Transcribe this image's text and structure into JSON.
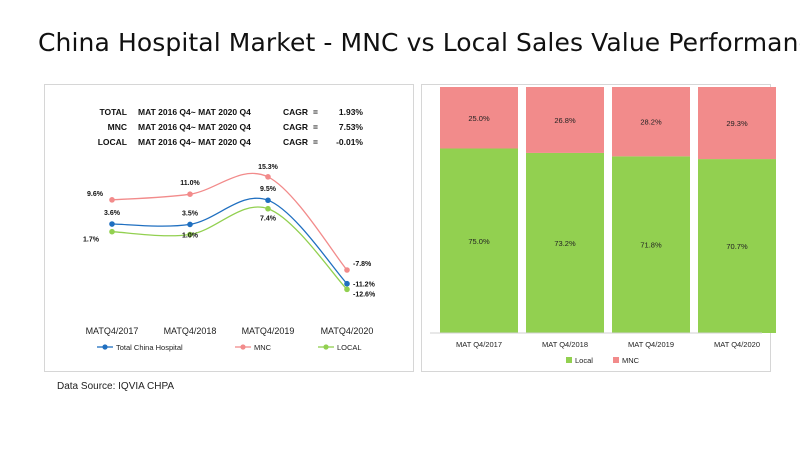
{
  "title": "China Hospital Market - MNC vs Local Sales Value Performance",
  "source": "Data Source: IQVIA CHPA",
  "cagr_table": [
    {
      "segment": "TOTAL",
      "period": "MAT 2016 Q4~ MAT 2020 Q4",
      "label": "CAGR",
      "eq": "=",
      "value": "1.93%"
    },
    {
      "segment": "MNC",
      "period": "MAT 2016 Q4~ MAT 2020 Q4",
      "label": "CAGR",
      "eq": "=",
      "value": "7.53%"
    },
    {
      "segment": "LOCAL",
      "period": "MAT 2016 Q4~ MAT 2020 Q4",
      "label": "CAGR",
      "eq": "=",
      "value": "-0.01%"
    }
  ],
  "colors": {
    "total": "#1f6fc0",
    "mnc": "#f28b8b",
    "local": "#92d050"
  },
  "chart_data": [
    {
      "type": "line",
      "categories": [
        "MATQ4/2017",
        "MATQ4/2018",
        "MATQ4/2019",
        "MATQ4/2020"
      ],
      "series": [
        {
          "name": "Total China Hospital",
          "values": [
            3.6,
            3.5,
            9.5,
            -11.2
          ],
          "labels": [
            "3.6%",
            "3.5%",
            "9.5%",
            "-11.2%"
          ]
        },
        {
          "name": "MNC",
          "values": [
            9.6,
            11.0,
            15.3,
            -7.8
          ],
          "labels": [
            "9.6%",
            "11.0%",
            "15.3%",
            "-7.8%"
          ]
        },
        {
          "name": "LOCAL",
          "values": [
            1.7,
            1.0,
            7.4,
            -12.6
          ],
          "labels": [
            "1.7%",
            "1.0%",
            "7.4%",
            "-12.6%"
          ]
        }
      ],
      "ylim": [
        -14,
        17
      ],
      "grid": false,
      "legend": "bottom"
    },
    {
      "type": "bar",
      "stacked": true,
      "categories": [
        "MAT Q4/2017",
        "MAT Q4/2018",
        "MAT Q4/2019",
        "MAT Q4/2020"
      ],
      "series": [
        {
          "name": "Local",
          "values": [
            75.0,
            73.2,
            71.8,
            70.7
          ],
          "labels": [
            "75.0%",
            "73.2%",
            "71.8%",
            "70.7%"
          ]
        },
        {
          "name": "MNC",
          "values": [
            25.0,
            26.8,
            28.2,
            29.3
          ],
          "labels": [
            "25.0%",
            "26.8%",
            "28.2%",
            "29.3%"
          ]
        }
      ],
      "ylim": [
        0,
        100
      ],
      "grid": false,
      "legend": "bottom"
    }
  ]
}
